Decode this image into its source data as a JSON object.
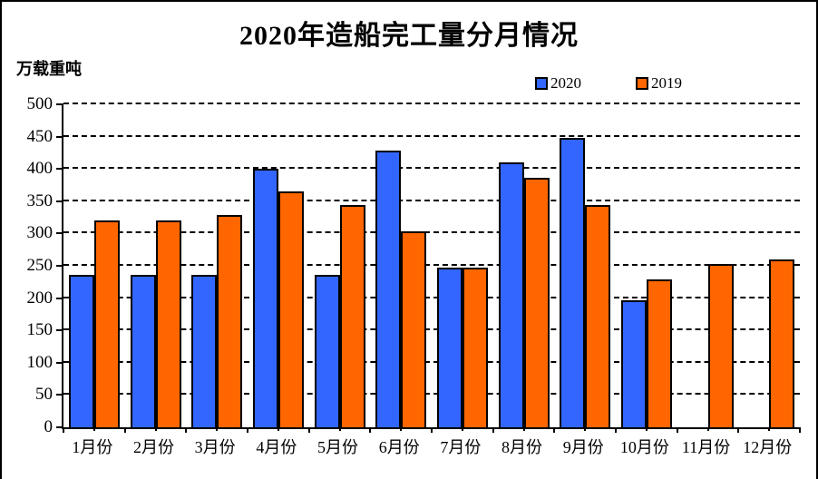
{
  "chart_data": {
    "type": "bar",
    "title": "2020年造船完工量分月情况",
    "ylabel": "万载重吨",
    "xlabel": "",
    "categories": [
      "1月份",
      "2月份",
      "3月份",
      "4月份",
      "5月份",
      "6月份",
      "7月份",
      "8月份",
      "9月份",
      "10月份",
      "11月份",
      "12月份"
    ],
    "series": [
      {
        "name": "2020",
        "color": "#3366FF",
        "values": [
          233,
          233,
          233,
          397,
          233,
          425,
          244,
          407,
          445,
          194,
          null,
          null
        ]
      },
      {
        "name": "2019",
        "color": "#FF6600",
        "values": [
          317,
          317,
          326,
          362,
          341,
          300,
          244,
          383,
          341,
          226,
          250,
          257
        ]
      }
    ],
    "ylim": [
      0,
      500
    ],
    "ytick_step": 50,
    "grid": "horizontal-dashed-black",
    "legend_position": "top-right",
    "bar_border_color": "#000000",
    "background_color": "#FFFFFF"
  }
}
